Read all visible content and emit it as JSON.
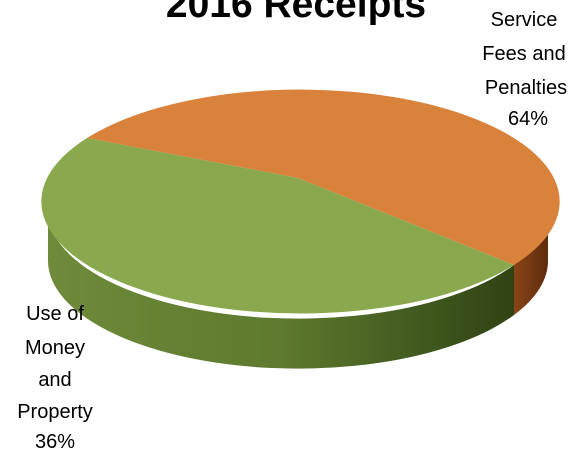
{
  "chart_data": {
    "type": "pie",
    "title": "2016 Receipts",
    "categories": [
      "Service Fees and Penalties",
      "Use of Money and Property"
    ],
    "values": [
      64,
      36
    ],
    "slices": [
      {
        "label_lines": [
          "Service",
          "Fees and",
          "Penalties"
        ],
        "percent_label": "64%",
        "color": "#D9823B",
        "side_color": "#7A3A12"
      },
      {
        "label_lines": [
          "Use of",
          "Money",
          "and",
          "Property"
        ],
        "percent_label": "36%",
        "color": "#8AA84D",
        "side_color": "#4E6A23"
      }
    ]
  }
}
